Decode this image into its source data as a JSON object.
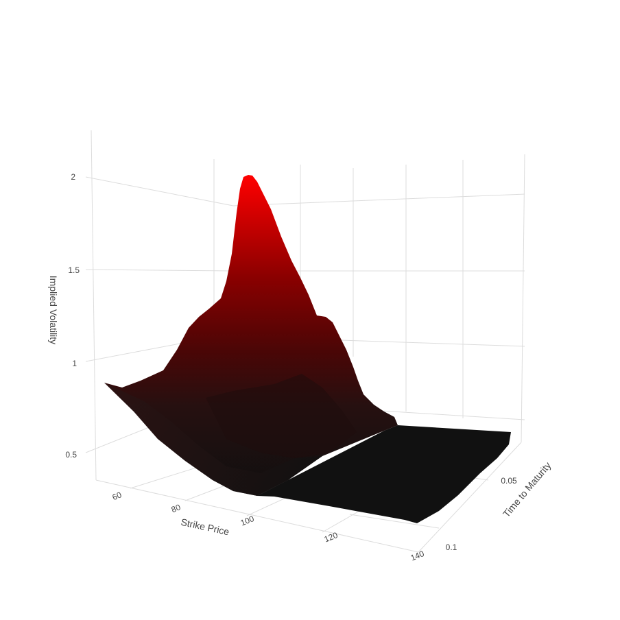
{
  "chart_data": {
    "type": "surface",
    "title": "",
    "xlabel": "Strike Price",
    "ylabel": "Time to Maturity",
    "zlabel": "Implied Volatility",
    "x_ticks": [
      "60",
      "80",
      "100",
      "120",
      "140"
    ],
    "y_ticks": [
      "0.05",
      "0.1"
    ],
    "z_ticks": [
      "0.5",
      "1",
      "1.5",
      "2"
    ],
    "xlim": [
      55,
      140
    ],
    "ylim": [
      0,
      0.11
    ],
    "zlim": [
      0.4,
      2.1
    ],
    "grid": true,
    "colorscale": [
      "#0f0f0f",
      "#2a1010",
      "#5a0505",
      "#9a0000",
      "#ff0000"
    ],
    "peak": {
      "strike": 100,
      "maturity": 0.005,
      "iv": 2.0
    },
    "surface_samples": [
      {
        "strike": 57,
        "maturity": 0.0,
        "iv": 0.85
      },
      {
        "strike": 70,
        "maturity": 0.0,
        "iv": 0.92
      },
      {
        "strike": 85,
        "maturity": 0.0,
        "iv": 1.3
      },
      {
        "strike": 100,
        "maturity": 0.0,
        "iv": 2.0
      },
      {
        "strike": 110,
        "maturity": 0.0,
        "iv": 1.3
      },
      {
        "strike": 125,
        "maturity": 0.0,
        "iv": 0.5
      },
      {
        "strike": 140,
        "maturity": 0.0,
        "iv": 0.45
      },
      {
        "strike": 60,
        "maturity": 0.1,
        "iv": 0.4
      },
      {
        "strike": 140,
        "maturity": 0.1,
        "iv": 0.4
      }
    ]
  }
}
